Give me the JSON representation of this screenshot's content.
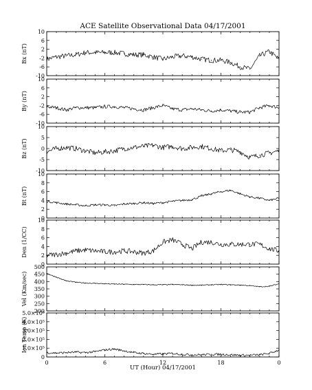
{
  "title": "ACE Satellite Observational Data   04/17/2001",
  "xlabel": "UT (Hour)   04/17/2001",
  "x_ticks": [
    "0",
    "6",
    "12",
    "18",
    "0"
  ],
  "chart_data": [
    {
      "type": "line",
      "ylabel": "Bx (nT)",
      "ylim": [
        -10,
        10
      ],
      "y_ticks": [
        "10",
        "6",
        "2",
        "-2",
        "-6",
        "-10"
      ],
      "y_tick_values": [
        10,
        6,
        2,
        -2,
        -6,
        -10
      ],
      "x": [
        0,
        1,
        2,
        3,
        4,
        5,
        6,
        7,
        8,
        9,
        10,
        11,
        12,
        13,
        14,
        15,
        16,
        17,
        18,
        19,
        20,
        21,
        22,
        23,
        24
      ],
      "values": [
        -2.5,
        -1.5,
        -1,
        -0.5,
        0.5,
        0.5,
        0.5,
        0.5,
        0,
        -0.5,
        -0.5,
        -1.5,
        -2.5,
        -1.5,
        -1,
        -1.5,
        -2.5,
        -3,
        -3,
        -4,
        -6,
        -7,
        -1,
        1,
        -2.5
      ],
      "series": [
        {
          "name": "",
          "values": [
            -2.5,
            -1.5,
            -1,
            -0.5,
            0.5,
            0.5,
            0.5,
            0.5,
            0,
            -0.5,
            -0.5,
            -1.5,
            -2.5,
            -1.5,
            -1,
            -1.5,
            -2.5,
            -3,
            -3,
            -4,
            -6,
            -7,
            -1,
            1,
            -2.5
          ]
        }
      ]
    },
    {
      "type": "line",
      "ylabel": "By (nT)",
      "ylim": [
        -10,
        10
      ],
      "y_ticks": [
        "10",
        "6",
        "2",
        "-2",
        "-6",
        "-10"
      ],
      "y_tick_values": [
        10,
        6,
        2,
        -2,
        -6,
        -10
      ],
      "x": [
        0,
        1,
        2,
        3,
        4,
        5,
        6,
        7,
        8,
        9,
        10,
        11,
        12,
        13,
        14,
        15,
        16,
        17,
        18,
        19,
        20,
        21,
        22,
        23,
        24
      ],
      "values": [
        -2.5,
        -3,
        -4,
        -3,
        -3,
        -3,
        -2.5,
        -2.5,
        -3,
        -3.5,
        -4,
        -3,
        -2,
        -3.5,
        -4,
        -3.5,
        -4,
        -4.5,
        -4,
        -4.5,
        -5,
        -5,
        -3,
        -2,
        -3
      ],
      "series": [
        {
          "name": "",
          "values": [
            -2.5,
            -3,
            -4,
            -3,
            -3,
            -3,
            -2.5,
            -2.5,
            -3,
            -3.5,
            -4,
            -3,
            -2,
            -3.5,
            -4,
            -3.5,
            -4,
            -4.5,
            -4,
            -4.5,
            -5,
            -5,
            -3,
            -2,
            -3
          ]
        }
      ]
    },
    {
      "type": "line",
      "ylabel": "Bz (nT)",
      "ylim": [
        -10,
        10
      ],
      "y_ticks": [
        "10",
        "5",
        "0",
        "-5",
        "-10"
      ],
      "y_tick_values": [
        10,
        5,
        0,
        -5,
        -10
      ],
      "x": [
        0,
        1,
        2,
        3,
        4,
        5,
        6,
        7,
        8,
        9,
        10,
        11,
        12,
        13,
        14,
        15,
        16,
        17,
        18,
        19,
        20,
        21,
        22,
        23,
        24
      ],
      "values": [
        -1.5,
        0,
        0.5,
        0,
        -1,
        -2,
        -1.5,
        -1,
        0,
        0.5,
        1,
        1.5,
        0.5,
        1,
        0,
        0.5,
        1,
        0,
        -1,
        -0.5,
        -1.5,
        -4,
        -3,
        -2,
        -1
      ],
      "series": [
        {
          "name": "",
          "values": [
            -1.5,
            0,
            0.5,
            0,
            -1,
            -2,
            -1.5,
            -1,
            0,
            0.5,
            1,
            1.5,
            0.5,
            1,
            0,
            0.5,
            1,
            0,
            -1,
            -0.5,
            -1.5,
            -4,
            -3,
            -2,
            -1
          ]
        }
      ]
    },
    {
      "type": "line",
      "ylabel": "Bt (nT)",
      "ylim": [
        0,
        10
      ],
      "y_ticks": [
        "10",
        "8",
        "6",
        "4",
        "2",
        "0"
      ],
      "y_tick_values": [
        10,
        8,
        6,
        4,
        2,
        0
      ],
      "x": [
        0,
        1,
        2,
        3,
        4,
        5,
        6,
        7,
        8,
        9,
        10,
        11,
        12,
        13,
        14,
        15,
        16,
        17,
        18,
        19,
        20,
        21,
        22,
        23,
        24
      ],
      "values": [
        3.8,
        3.5,
        3.2,
        3,
        2.8,
        3,
        3,
        2.8,
        3.2,
        3.3,
        3.5,
        3.3,
        3.5,
        3.8,
        4,
        4.2,
        5,
        5.5,
        6,
        6.3,
        5.5,
        4.8,
        4.5,
        4,
        4.5
      ],
      "series": [
        {
          "name": "",
          "values": [
            3.8,
            3.5,
            3.2,
            3,
            2.8,
            3,
            3,
            2.8,
            3.2,
            3.3,
            3.5,
            3.3,
            3.5,
            3.8,
            4,
            4.2,
            5,
            5.5,
            6,
            6.3,
            5.5,
            4.8,
            4.5,
            4,
            4.5
          ]
        }
      ]
    },
    {
      "type": "line",
      "ylabel": "Den (1/CC)",
      "ylim": [
        0,
        10
      ],
      "y_ticks": [
        "10",
        "8",
        "6",
        "4",
        "2",
        "0"
      ],
      "y_tick_values": [
        10,
        8,
        6,
        4,
        2,
        0
      ],
      "x": [
        0,
        1,
        2,
        3,
        4,
        5,
        6,
        7,
        8,
        9,
        10,
        11,
        12,
        13,
        14,
        15,
        16,
        17,
        18,
        19,
        20,
        21,
        22,
        23,
        24
      ],
      "values": [
        2,
        2.2,
        2.5,
        3,
        3.2,
        3,
        2.8,
        2.8,
        3,
        2.8,
        2.5,
        3,
        5,
        5.5,
        4.5,
        3.5,
        5,
        5,
        4.5,
        4.5,
        4.5,
        4.5,
        4.5,
        3.5,
        3
      ],
      "series": [
        {
          "name": "",
          "values": [
            2,
            2.2,
            2.5,
            3,
            3.2,
            3,
            2.8,
            2.8,
            3,
            2.8,
            2.5,
            3,
            5,
            5.5,
            4.5,
            3.5,
            5,
            5,
            4.5,
            4.5,
            4.5,
            4.5,
            4.5,
            3.5,
            3
          ]
        }
      ]
    },
    {
      "type": "line",
      "ylabel": "Vel (Km/sec)",
      "ylim": [
        200,
        500
      ],
      "y_ticks": [
        "500",
        "450",
        "400",
        "350",
        "300",
        "250",
        "200"
      ],
      "y_tick_values": [
        500,
        450,
        400,
        350,
        300,
        250,
        200
      ],
      "x": [
        0,
        1,
        2,
        3,
        4,
        5,
        6,
        7,
        8,
        9,
        10,
        11,
        12,
        13,
        14,
        15,
        16,
        17,
        18,
        19,
        20,
        21,
        22,
        23,
        24
      ],
      "values": [
        455,
        430,
        405,
        395,
        390,
        388,
        385,
        383,
        382,
        380,
        380,
        378,
        378,
        380,
        378,
        375,
        375,
        378,
        380,
        378,
        376,
        372,
        365,
        368,
        385
      ],
      "series": [
        {
          "name": "",
          "values": [
            455,
            430,
            405,
            395,
            390,
            388,
            385,
            383,
            382,
            380,
            380,
            378,
            378,
            380,
            378,
            375,
            375,
            378,
            380,
            378,
            376,
            372,
            365,
            368,
            385
          ]
        }
      ]
    },
    {
      "type": "line",
      "ylabel": "Ion Temp (K)",
      "ylim": [
        0,
        500000
      ],
      "y_ticks": [
        "5.0×10⁵",
        "4.0×10⁵",
        "3.0×10⁵",
        "2.0×10⁵",
        "1.0×10⁵",
        "0"
      ],
      "y_tick_values": [
        500000,
        400000,
        300000,
        200000,
        100000,
        0
      ],
      "x": [
        0,
        1,
        2,
        3,
        4,
        5,
        6,
        7,
        8,
        9,
        10,
        11,
        12,
        13,
        14,
        15,
        16,
        17,
        18,
        19,
        20,
        21,
        22,
        23,
        24
      ],
      "values": [
        50000,
        45000,
        50000,
        55000,
        50000,
        60000,
        80000,
        90000,
        70000,
        50000,
        40000,
        30000,
        35000,
        40000,
        30000,
        25000,
        25000,
        30000,
        30000,
        25000,
        20000,
        20000,
        25000,
        40000,
        80000
      ],
      "series": [
        {
          "name": "",
          "values": [
            50000,
            45000,
            50000,
            55000,
            50000,
            60000,
            80000,
            90000,
            70000,
            50000,
            40000,
            30000,
            35000,
            40000,
            30000,
            25000,
            25000,
            30000,
            30000,
            25000,
            20000,
            20000,
            25000,
            40000,
            80000
          ]
        }
      ]
    }
  ]
}
